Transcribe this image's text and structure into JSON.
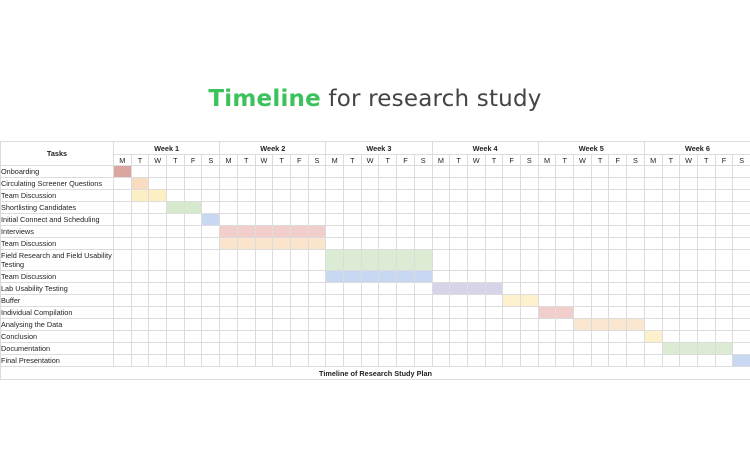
{
  "title": {
    "accent": "Timeline",
    "rest": "for research study"
  },
  "gantt": {
    "tasks_header": "Tasks",
    "footer": "Timeline of Research Study Plan",
    "weeks": [
      "Week 1",
      "Week 2",
      "Week 3",
      "Week 4",
      "Week 5",
      "Week 6"
    ],
    "day_letters": [
      "M",
      "T",
      "W",
      "T",
      "F",
      "S"
    ],
    "tasks": [
      {
        "name": "Onboarding",
        "start": 0,
        "span": 1,
        "color": "#d9a7a0"
      },
      {
        "name": "Circulating Screener Questions",
        "start": 1,
        "span": 1,
        "color": "#f7dcc1"
      },
      {
        "name": "Team Discussion",
        "start": 1,
        "span": 2,
        "color": "#fcefc4"
      },
      {
        "name": "Shortlisting Candidates",
        "start": 3,
        "span": 2,
        "color": "#d6e9cc"
      },
      {
        "name": "Initial Connect and Scheduling",
        "start": 5,
        "span": 1,
        "color": "#c8d7f2"
      },
      {
        "name": "Interviews",
        "start": 6,
        "span": 6,
        "color": "#f1cdcc"
      },
      {
        "name": "Team Discussion",
        "start": 6,
        "span": 6,
        "color": "#fbe4cc"
      },
      {
        "name": "Field Research and Field Usability Testing",
        "start": 12,
        "span": 6,
        "color": "#dcebd4",
        "tall": true
      },
      {
        "name": "Team Discussion",
        "start": 12,
        "span": 6,
        "color": "#c8d8f3"
      },
      {
        "name": "Lab Usability Testing",
        "start": 18,
        "span": 4,
        "color": "#d7d3e8"
      },
      {
        "name": "Buffer",
        "start": 22,
        "span": 2,
        "color": "#fdf0cc"
      },
      {
        "name": "Individual Compilation",
        "start": 24,
        "span": 2,
        "color": "#f1cdcc"
      },
      {
        "name": "Analysing the Data",
        "start": 26,
        "span": 4,
        "color": "#fbe6d1"
      },
      {
        "name": "Conclusion",
        "start": 30,
        "span": 1,
        "color": "#fdf0cc"
      },
      {
        "name": "Documentation",
        "start": 31,
        "span": 4,
        "color": "#dcebd4"
      },
      {
        "name": "Final Presentation",
        "start": 35,
        "span": 1,
        "color": "#c8d7f2"
      }
    ]
  }
}
